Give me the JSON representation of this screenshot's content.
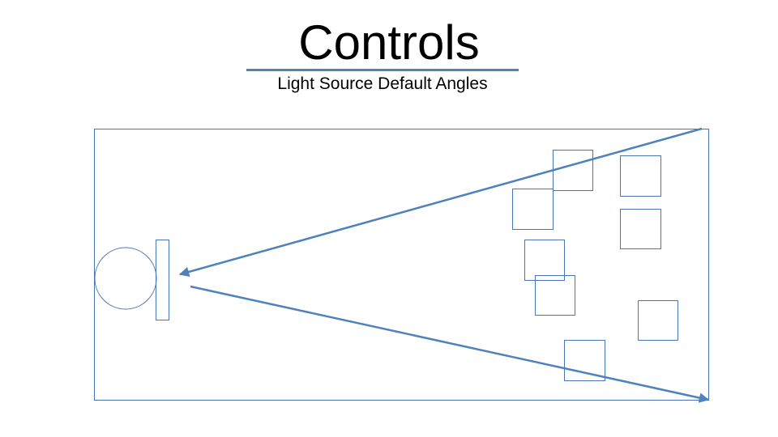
{
  "slide": {
    "title": "Controls",
    "subtitle": "Light Source Default Angles"
  },
  "colors": {
    "accent": "#4f81bd",
    "outline": "#4a74b4",
    "text": "#000000",
    "background": "#ffffff"
  },
  "diagram": {
    "elements": {
      "frame": "rectangle-outline",
      "light_source": "circle",
      "light_panel": "narrow-rectangle",
      "arrows": [
        "arrow-upper-ray",
        "arrow-lower-ray"
      ],
      "object_count": 9
    }
  }
}
